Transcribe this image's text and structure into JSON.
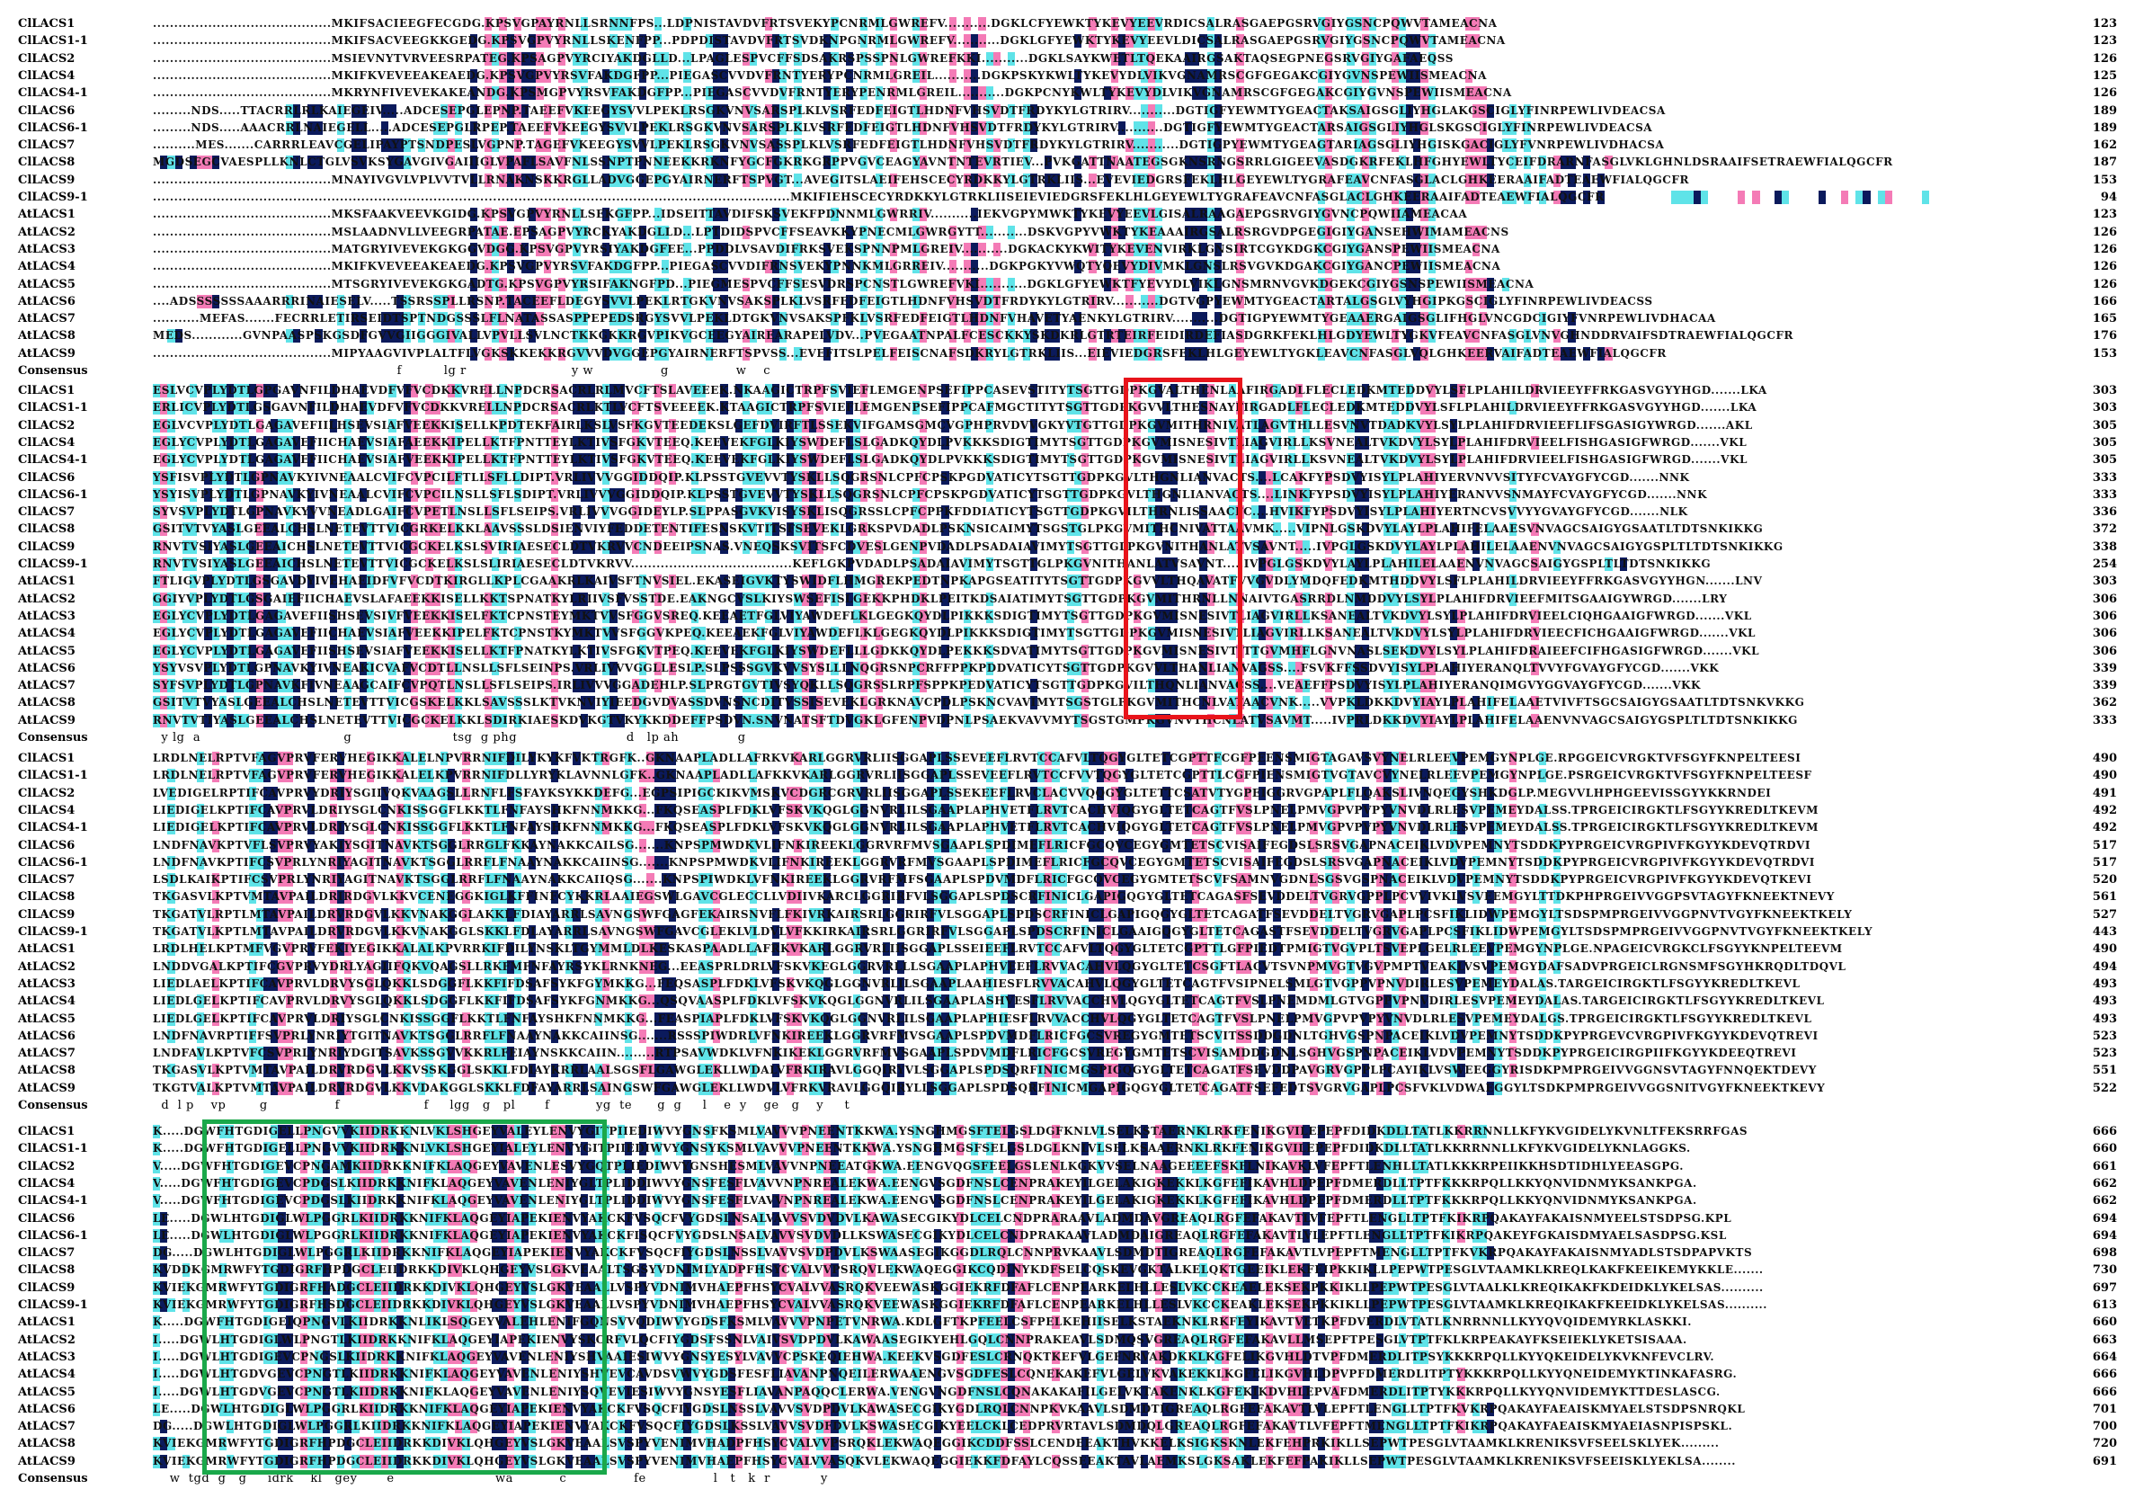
{
  "names": [
    "ClLACS1",
    "ClLACS1-1",
    "ClLACS2",
    "ClLACS4",
    "ClLACS4-1",
    "ClLACS6",
    "ClLACS6-1",
    "ClLACS7",
    "ClLACS8",
    "ClLACS9",
    "ClLACS9-1",
    "AtLACS1",
    "AtLACS2",
    "AtLACS3",
    "AtLACS4",
    "AtLACS5",
    "AtLACS6",
    "AtLACS7",
    "AtLACS8",
    "AtLACS9",
    "Consensus"
  ],
  "blocks": [
    {
      "numbers": [
        "123",
        "123",
        "126",
        "125",
        "126",
        "189",
        "189",
        "162",
        "187",
        "153",
        "94",
        "123",
        "126",
        "126",
        "126",
        "126",
        "166",
        "165",
        "176",
        "153"
      ],
      "consensus": "                                                          f          lg r                         y w                g                w    c"
    },
    {
      "numbers": [
        "303",
        "303",
        "305",
        "305",
        "305",
        "333",
        "333",
        "336",
        "372",
        "338",
        "254",
        "303",
        "306",
        "306",
        "306",
        "306",
        "339",
        "339",
        "362",
        "333"
      ],
      "consensus": "  y lg  a                                  g                        tsg  g phg                          d   lp ah              g"
    },
    {
      "numbers": [
        "490",
        "490",
        "491",
        "492",
        "492",
        "517",
        "517",
        "520",
        "561",
        "527",
        "443",
        "490",
        "494",
        "493",
        "493",
        "493",
        "523",
        "523",
        "551",
        "522"
      ],
      "consensus": "  d  l p    vp        g                f                    f     lgg   g   pl       f           yg  te      g  g     l    e  y    ge   g    y     t"
    },
    {
      "numbers": [
        "666",
        "660",
        "661",
        "662",
        "662",
        "694",
        "694",
        "698",
        "730",
        "697",
        "613",
        "660",
        "663",
        "664",
        "666",
        "666",
        "701",
        "700",
        "720",
        "691"
      ],
      "consensus": "    w  tgd  g   g     idrk    kl   gey       e                        wa           c                fe                l   t   k  r            y"
    }
  ],
  "sequences": [
    [
      "..........................................MKIFSACIEEGFECGDG.KPSVGPAYRNLLSRNNFPS...LDPNISTAVDVFRTSVEKYPCNRMLGWREFV...........DGKLCFYEWKTYKEVYEEVRDICSALRASGAEPGSRVGIYGSNCPQWVTAMEACNA",
      "..........................................MKIFSACVEEGKKGEDG.KPSVGPVYRNLLSKENFPP...PDPDISTAVDVFRTSVDKNPGNRMLGWREFV...........DGKLGFYEWKTYKEVYEEVLDICSALRASGAEPGSRVGIYGSNCPQWVTAMEACNA",
      "..........................................MSIEVNYTVRVEESRPATEG.KPSAGPVYRCIYAKDGLLD...LPAGLESPVCFFSDSAKRSPSSPNLGWREFKKI...........DGKLSAYKWETLTQEKAAIRGSAKTAQSEGPNEGSRVGIYGAFAEQSS",
      "..........................................MKIFKVEVEEAKEAEDG.KPSVGPVYRSVFAKDGFPP...PIEGASCVVDVFRNTYERYPCNRMLGREIL...........DGKPSKYKWLTYKEVYDLVIKVGNAMRSCGFGEGAKCGIYGVNSPEWIISMEACNA",
      "..........................................MKRYNFIVEVEKAKEANDG.KPSMGPVYRSVFAKDGFPP...PIEGASCVVDVFRNTYERYPENRMLGREIL...........DGKPCNYKWLTYKEVYDLVIKVGNAMRSCGFGEGAKCGIYGVNSPEWIISMEACNA",
      ".........NDS.....TTACRRLRLKAIEGEIV.....ADCESEPGLEPNP.TAEEFVKEEGYSVVLPEKLRSGKVNVSARSPLKLVSRFEDFEIGTLHDNFVHSVDTFRDYKYLGTRIRV...........DGTIGFYEWMTYGEACTAKSAIGSGLIYHGLAKGSCIGLYFINRPEWLIVDEACSA",
      ".........NDS.....AAACRRLNAIEGELL.....ADCESEPGLRPEP.TAEEFVKEEGYSVVLPEKLRSGKVNVSARSPLKLVSRFEDFEIGTLHDNFVHSVDTFRDYKYLGTRIRV...........DGTIGFYEWMTYGEACTARSAIGSGLIYHGLSKGSCIGLYFINRPEWLIVDEACSA",
      "..........MES.......CARRRLEAVCGELIPAYPTSNDPESLVGPNP.TAGEFVKEEGYSVVLPEKLRSGKVNVSASSPLKLVSRFEDFEIGTLHDNFVHSVDTFRDYKYLGTRIRV...........DGTIGPYEWMTYGEAGTARIAGSGLIYHGISKGACIGLYFVNRPEWLIVDHACSA",
      "MGDSEGCVAESPLLKNLCTGLVSVKSYGAVGIVGAIIIGLVPAFLSAVFNLSSNPTPNNEEKKRKNFYGCFGKRKGRPPVGVCEAGYAVNTNTEVRTIEV...PVKGATTNAATEGSGKNSRNGSRRLGIGEEVASDGKRFEKLHFGHYEWLTYCEIFDRARNFASGLVKLGHNLDSRAAIFSETRAEWFIALQGCFR",
      "..........................................MNAYIVGVLVPLVVTVLLRNAKNSKKRGLLADVGGEPGYAIRNERFTSPVGT...AVEGITSLAEIFEHSCECYRDKKYLGTRKLIIS...EVEVIEDGRSFEKLHLGEYEWLTYGRAFEAVCNFASGLACLGHKEERAAIFADTEAEWFIALQGCFR",
      "......................................................................................................................................................MKIFIEHSCECYRDKKYLGTRKLIISEIEVIEDGRSFEKLHLGEYEWLTYGRAFEAVCNFASGLACLGHKEERAAIFADTEAEWFIALQGCFR",
      "..........................................MKSFAAKVEEVKGIDG.KPSVGPVYRNLLSEKGFPP...IDSEITTAVDIFSKSVEKFPDNNMLGWRRIV...........IEKVGPYMWKTYKEVYEEVLGISALRAAGAEPGSRVGIYGVNCPQWIIAMEACAA",
      "..........................................MSLAADNVLLVEEGRPATAE.EPSAGPVYRCKYAKDGLLD...LPTDIDSPVCFFSEAVKKYPNECMLGWRGYTT...........DSKVGPYVWKTYKEAAAIRGSALRSRGVDPGEGIGIYGANSEHWIMAMEACNS",
      "..........................................MATGRYIVEVEKGKGGVDGG.KPSVGPVYRSIYAKDGFEE...PPDDLVSAVDIFRKSVEKSPNNPMLGREIV...........DGKACKYKWITYKEVENVIRKLGNSIRTCGYKDGKCGIYGANSPEWIISMEACNA",
      "..........................................MKIFKVEVEEAKEAEDG.KPSVGPVYRSVFAKDGFPP...PIEGASCVVDIFRNSVEKYPNNKMLGRREIV...........DGKPGKYVWQTYQEVYDIVMKLGNSLRSVGVKDGAKCGIYGANCPEWIISMEACNA",
      "..........................................MTSGRYIVEVEKGKGADTG.KPSVGPVYRSIFAKNGFPD...PIEGMESPVCFFSESVDRSPCNSTLGWREFVKI...........DGKLGFYEWKTFYEVYDLVIKLGNSMRNVGVKDGEKCGIYGSNSPEWIISMEACNA",
      "....ADSSSSSSSAAARRRINAIESELV.....TSSRSSPLLRSNP.TACEEFLDEGYSVVLPEKLRTGKVNVSAKSPLKLVSRFEDFEIGTLHDNFVHSVDTFRDYKYLGTRIRV...........DGTVGPYEWMTYGEACTARTALGSGLVYHGIPKGSCIGLYFINRPEWLIVDEACSS",
      "...........MEFAS.......FECRRLETIRSEIDTSPTNDGSSSLFLNATASSASPPEPEDSRGYSVVLPEKLDTGKVNVSAKSPFKLVSRFEDFEIGTLHDNFVHAVETYAENKYLGTRIRV...........DGTIGPYEWMTYGEAAERGAIGSGLIFHGLVNCGDCIGIYFVNRPEWLIVDHACAA",
      "MEDS............GVNPAASPSKGSDFGVVGIIGGGIVALLVPVLLSVLNCTKKGKKRGVPIKVGCEEGYAIREARAPELVDV...PVEGAATNPALFCESCKKYSKDKRLGTRTEIRFEIDIRDEFIASDGRKFEKLHLGDYEWLTYGKVFEAVCNFASGLVNVGHNDDRVAIFSDTRAEWFIALQGCFR",
      "..........................................MIPYAAGVIVPLALTFLVGKSKKEKKRGVVVDVGGEPGYAIRNERFTSPVSS...EVEFITSLPELFEISCNAFSDKRYLGTRKLIIS...EIEVIEDGRSFEKLHLGEYEWLTYGKLEAVCNFASGLVQLGHKEERVAIFADTEAEWFIALQGCFR",
      ""
    ],
    [
      "ESLVCVPLYDTLGPGAVNFILDHAEVDFVFVCDKKVRELLNPDCRSACRLRLMVCFTSLAVEEEK.NKAAGICTRPFSVIEFLEMGENPSEFIPPCASEVSTITYTSGTTGDPKGVALTHENLAAFIRGADLFLECLEDKMTEDDVYLSFLPLAHILDRVIEEYFFRKGASVGYYHGD.......LKA",
      "ERLICVPLYDTLGSGAVNFILDHAEVDFVFVCDKKVRELLNPDCRSACRLKTLVCFTSVEEEEK.KTAAGICTRPFSVIEFLEMGENPSEFIPPCAFMGCTITYTSGTTGDPKGVVLTHESNAYFIRGADLFLECLEDKMTEDDVYLSFLPLAHILDRVIEEYFFRKGASVGYYHGD.......LKA",
      "EGLVCVPLYDTLGAGAVEFIILHSEVSIAFVEEKKISELLKPDTEKFAIRLKSLVSFKGVTEEDEKSLGEFDVIRFTLSSEKVIFGAMSGMCVGPHPRVDVVGKYVTGTTGDPKGVMITHRNIVATLAGVTHLLESVNVTDADKVYLSYLPLAHIFDRVIEEFLIFSGASIGYWRGD.......AKL",
      "EGLYCVPLYDTLGAGAVEFIICHAEVSIAFAEEKKIPELLKTFPNTTEYLKTIVSFGKVTEEQ.KEEVEKFGLKIYSWDEFLSLGADKQYDLPVKKKSDIGTIMYTSGTTGDPKGVMISNESIVTLIAGVIRLLKSVNEALTVKDVYLSYLPLAHIFDRVIEELFISHGASIGFWRGD.......VKL",
      "EGLYCVPLYDTLGAGAVEFIICHAEVSIAFVEEKKIPELLKTFPNTTEYLKTIVSFGKVTEEQ.KEEVEKFGLKIYSWDEFLSLGADKQYDLPVKKKSDIGTIMYTSGTTGDPKGVMISNESIVTLIAGVIRLLKSVNEALTVKDVYLSYLPLAHIFDRVIEELFISHGASIGFWRGD.......VKL",
      "YSFISVPLYDTLGPNAVKYIVNEAALCVIFCVPCILFTLLSFLLDIPT.VRLIVVVGGIDDQIP.KLPSSTGVEVVTYSKLLSQGRSNLCPFCPSKPGDVATICYTSGTTGDPKGVLTHGNLIANVACTS....LCAKFYPSDVYISYLPLAHIYERVNVVSITYFCVAYGFYCGD.......NNK",
      "YSYISVPLYDTLGPNAVKYIVNEAALCVIFCVPCILNSLLSFLSDIPT.VRLIVVVGGIDDQIP.KLPSSTGVEVVTYSKLLSQGRSNLCPFCPSKPGDVATICYTSGTTGDPKGVLTHGNLIANVACTS....LINKFYPSDVYISYLPLAHIYERANVVSNMAYFCVAYGFYCGD.......NNK",
      "SYVSVPLYDTLGPNAVKYVVNEADLGAIFCVPETLNSLLSFLSEIPS.VRLIVVVGGIDEYLP.SLPPASGVKVISYSKLISQGRSSLCPFCPPKFDDIATICYTSGTTGDPKGVILTHRNLISSAACFC....HVIKFYPSDVYISYLPLAHIYERTNCVSVVYYGVAYGFYCGD.......NLK",
      "GSITVTVYASLGEEALCHSLNETEVTTVICGRKELKKLAAVSSSLDSIENVIYFEDDETENTIFESNSKVTITSFSEVEKLGRKSPVDADLPSKNSICAIMYTSGSTGLPKGVMITHCNIVATTAAVMK.....VIPNLGSKDVYLAYLPLAHIFELAAESVNVAGCSAIGYGSAATLTDTSNKIKKG",
      "RNVTVSIYASLGEEAICHSLNETEVTTVICGCKELKSLSVIRIAESECLDTVKRVVCNDEEIPSNAS.VNEQSKSVITSFCDVESLGENPVDADLPSADAIAVIMYTSGTTGLPKGVNITHANLATVSAVNT.....IVPGLGSKDVYLAYLPLAHILELAAENVNVAGCSAIGYGSPLTLTDTSNKIKKG",
      "RNVTVSIYASLGEEAICHSLNETEVTTVICGCKELKSLSLIRIAESECLDTVKRVV......................................KEFLGKPVDADLPSADAIAVIMYTSGTTGLPKGVNITHANLATVSAVNT.....IVPGLGSKDVYLAYLPLAHILELAAENVNVAGCSAIGYGSPLTLTDTSNKIKKG",
      "FTLIGVPLYDTLGSGAVDYIVEHAEIDFVFVCDTKIRGLLKPLCGAAKRLKAIVSFTNVSIEL.EKASEIGVKTYSWIDFLHMGREKPEDTNPKAPGSEATITYTSGTTGDPKGVVLTHQAVATFVVGVDLYMDQFEDKMTHDDVYLSFLPLAHILDRVIEEYFFRKGASVGYYHGN.......LNV",
      "GGIYVPLYDTLGSGAIEFIICHAEVSLAFAEEKKISELLKKTSPNATKYLRIIVSFVSSTDE.EAKNGCVSLKIYSWSEFISLGEKKPHDKLPEITKDSAIATIMYTSGTTGDPKGVMITHRNLLNNAIVTGASRRDLNMDDVYLSYLPLAHIFDRVIEEFMITSGAAIGYWRGD.......LRY",
      "EGLYCVPLYDTLGAGAVEFIISHSEVSIVFVEEKKISELFKTCPNSTEYMKTVVSFGGVSREQ.KEEAETFGLVIYAWDEFLKLGEGKQYDLPIKKKSDIGTIMYTSGTTGDPKGVMISNESIVTLIAGVIRLLKSANEALTVKDVYLSYLPLAHIFDRVIEELCIQHGAAIGFWRGD.......VKL",
      "EGLYCVPLYDTLGAGAVEFIICHAEVSIAFVEEKKIPELFKTCPNSTKYMKTVVSFGGVKPEQ.KEEAEKFGLVIYAWDEFLKLGEGKQYDLPIKKKSDIGTIMYTSGTTGDPKGVMISNESIVTLIAGVIRLLKSANEALTVKDVYLSYLPLAHIFDRVIEECFICHGAAIGFWRGD.......VKL",
      "EGLYCVPLYDTLGAGAVEFIISHSEVSIAFVEEKKISELLKTFPNATKYLKTIVSFGKVTPEQ.KEEVEKFGLKIYSWDEFLLLGDKKQYDLPEKKKSDVATIMYTSGTTGDPKGVMISNESIVTITTGVMHFLGNVNASLSEKDVYLSYLPLAHIFDRAIEEFCIFHGASIGFWRGD.......VKL",
      "YSYVSVPLYDTLGPNAVKYIVNEAKICVAFVCDTLLNSLLSFLSEINPS.VRLIVVVGGLLESLP.SLPSSSGVKVVSYSLLLNQGRSNPCRFFPPKPDDVATICYTSGTTGDPKGVVLTHANLIANVAGSS....FSVKFFSSDVYISYLPLAHIYERANQLTVVYFGVAYGFYCGD.......VKK",
      "SYFSVPLYDTLGPNAVKFIVNEAAGCAIFCVPQTLNSLLSFLSEIPS.IRLIVVVGGADEHLP.SLPRGTGVTIVSYQKLLSQGRSSLRPFSPPKPEDVATICYTSGTTGDPKGVILTHQNLIANVACSS....VEAEFFPSDVYISYLPLAHIYERANQIMGVYGGVAYGFYCGD.......VKK",
      "GSITVTVYASLGEEALCHSLNETEVTTVICGSKELKKLSAVSSSLKTVKNVIYIEEDGVDVASSDVNSNCDITVSSISEVEKLGRKNAVCPDLPSKNCVAVIMYTSGSTGLPKGVMITHCNLVATAACVNK.....VVPKLDKKDVYIAYLPLAHIFELAAETVIVFTSGCSAIGYGSAATLTDTSNKVKKG",
      "RNVTVTIYASLGEEALCHSLNETEVTTVICGCKELKKLSDIRKIAESKDVKGTVKYKKDDEFFPSDVN.SNVNATSFTDVGKLGFENPVDPNLPSAEKVAVVMYTSGSTGMPKGVNVTHCNLATVSAVMT.....IVPRLDKKDVYIAYLPLAHIFELAAENVNVAGCSAIGYGSPLTLTDTSNKIKKG",
      ""
    ],
    [
      "LRDLNELRPTVFAGVPRVFERVHEGIKKALELNPVRRNIFDILYKYKFVKTRGFK..GKNAAPLADLLAFRKVKARLGGRVRLIISGGAPLSSEVEEFLRVTCCAFVLTQGYGLTETCGPTTFCGFPEENSMIGTAGAVSVYNELRLEEVPEMGYNPLGE.RPGGEICVRGKTVFSGYFKNPELTEESI",
      "LRDLNELRPTVFAGVPRVFERVHEGIKKALELKPVRRNIFDLLYRYKLAVNNLGFK..GKNAAPLADLLAFKKVKARLGGRVRLIISGGAPLSSEVEEFLRVTCCFVVTQGYGLTETCGPTTLCGFPIENSMIGTVGTAVCVYNELRLEEVPEMGYNPLGE.PSRGEICVRGKTVFSGYFKNPELTEESF",
      "LVEDIGELRPTIFCAVPRVYDRIYSGIIVQKVAAGSLLRNFLFSFAYKSYKKDEFG...EGPSIPIGCKIKVMSKVCDGRCGRVRLIISGGAPLSSEKEEFLRVCLACVVQQGYGLTETTCSATVTYGPEIGGRVGPAPLFLQAKSLIVNQEGYSHKDGLP.MEGVVLHPHGEEVISSGYYKKRNDEI",
      "LIEDIGELKPTIFCAVPRVLDRIYSGLCNKISSGGFLKKTLFNFAYSHKFNNMKKG...FKQSEASPLFDKLVFSKVKQGLGGNVRLILSGAAPLAPHVETFLRVTCACHVIQGYGLTETCAGTFVSLPNELPMVGPVPVPYVNVDLRLESVPEMEYDALSS.TPRGEICIRGKTLFSGYYKREDLTKEVM",
      "LIEDIGELKPTIFCAVPRVLDRIYSGLCNKISSGGFLKKTLFNFAYSHKFNNMKKG...FKQSEASPLFDKLVFSKVKQGLGGNVRLILSGAAPLAPHVETFLRVTCACHVIQGYGLTETCAGTFVSLPNELPMVGPVPVPYVNVDLRLESVPEMEYDALSS.TPRGEICIRGKTLFSGYYKREDLTKEVM",
      "LNDFNAVKPTVFLSVPRVYAKIYSGITNAVKTSGGLRRGLFKKAYNAKKCAILSG.......KNPSPMWDKVLIFNKIREEKLGGRVRFMVSGAAPLSPDIMEFLRICFGCQVCEGYGMTETSCVISAIFEGDSLSRSVGAPNACEIKLVDVPEMNYTSDDKPYPRGEICVRGPIVFKGYYKDEVQTRDVI",
      "LNDFNAVKPTIFCSVPRLYNRIYAGITNAVKTSGGLRRFLFNAAYNAKKCAIINSG.......KNPSPMWDKVLIFNKIREEKLGGRVRFMVSGAAPLSPDIMEFLRICFGCQVCEGYGMTETSCVISAIFEGDSLSRSVGAPNACEIKLVDVPEMNYTSDDKPYPRGEICVRGPIVFKGYYKDEVQTRDVI",
      "LSDLKAIKPTIFCSVPRLYNRIYAGITNAVKTSGGLRRFLFNAAYNAKKCAIIQSG.......KNPSPIWDKLVFNKIREEKLGGRVRFMFSGAAPLSPDVMDFLRICFGCQVCEGYGMTETSCVFSAMNVGDNLSGSVGSPNACEIKLVDVPEMNYTSDDKPYPRGEICVRGPIVFKGYYKDEVQTKEVI",
      "TKGASVLKPTVMTAVPAILDRIRDGVLKKVCENEGGKIGLKFFINFCYKKRLAAIEGSWLGAVCGLECCLLVDIIVKARCLGGRIRFVLSGGAPLSPDSCRFINICLGAPIGQGYGLTETCAGASFSEVDDELTVGRVGPPLPCVVIVKLVSVEEMGYLTTDKPHPRGEIVVGGPSVTAGYFKNEEKTNEVY",
      "TKGATVLRPTLMTAVPAILDRVRDGVLKKVNAKGGLAKKLFDIAYARRLSAVNGSWFGAGFEKAIRSNVFLFKIVRKAIRSRLGGRIRFVLSGGAPLSPDSCRFINICLGAPIGQGYGLTETCAGATFSEVDDELTVGRVGAPLPCSFIKLIDWPEMGYLTSDSPMPRGEIVVGGPNVTVGYFKNEEKTKELY",
      "TKGATVLKPTLMTAVPAILDRVRDGVLKKVNAKGGLSKKLFDLAYARRLSAVNGSWFGAVCGLEKLVLDVLVFKKIRKAIRSRLGGRIRFVLSGGAPLSPDSCRFINICLGAAIGQGYGLTETCAGASTFSEVDDELTVGRVGAPLPCSFIKLIDWPEMGYLTSDSPMPRGEIVVGGPNVTVGYFKNEEKTKELY",
      "LRDLHELKPTMFVGVPRVFEKIYEGIKKALALKPVRRKIFDILYNSKLTGYMMLDLKESKASPAADLLAFRKVKARLGGRVRLIISGGAPLSSEIEEFLRVTCCAFVLTQGYGLTETCGPTTLGFPIEDTPMIGTVGVPLTSVEPLGELRLEEVPEMGYNPLGE.NPAGEICVRGKCLFSGYYKNPELTEEVM",
      "LNDDVGALKPTIFCGVPRVYDRLYAGIIFQKVQAGSLLRKFMFNFAYRSYKLRNKNEG...EEASPRLDRLVFSKVKEGLGGRVRLLLSGAAPLAPHVEEFLRVVACAHVLQGYGLTETCSGFTLACVTSVNPMVGTVGVPMPTVEAKLVSVPEMGYDAFSADVPRGEICLRGNSMFSGYHKRQDLTDQVL",
      "LIEDLAELKPTIFCAVPRVLDRVYSGLQKKLSDGGFLKKFIFDSAFSYKFGYMKKG...FEQSASPLFDKLVFSKVKQGLGGNVRLILSGAAPLAAHIESFLRVVACAHVLQGYGLTETCAGTFVSIPNELSMLGTVGPPVPNVDIRLESVPEMEYDALAS.TARGEICIRGKTLFSGYYKREDLTKEVL",
      "LIEDLGELKPTIFCAVPRVLDRVYSGLQKKLSDGGFLKKFIFDSAFSYKFGNMKKG...QSQVAASPLFDKLVFSKVKQGLGGNVRLILSGAAPLASHVESFLRVVACCHVLQGYGLTETCAGTFVSLPNEMDMLGTVGPPVPNVDIRLESVPEMEYDALAS.TARGEICIRGKTLFSGYYKREDLTKEVL",
      "LIEDLGELKPTIFCAVPRVLDRIYSGLCNKISSGGFLKKTLFNFAYSHKFNNMKKG...FEASPIAPLFDKLVFSKVKQGLGGNVRLILSGAAPLAPHIESFLRVVACCHVLQGYGLTETCAGTFVSLPNELPMVGPVPVPYVNVDLRLESVPEMEYDALGS.TPRGEICIRGKTLFSGYYKREDLTKEVL",
      "LNDFNAVRPTIFFSVPRLYNRIYTGITNAVKTSGGLRRFLFNAAYNAKKCAIINSG.......RSSSPIWDRLVFNKIREEKLGGRVRFMVSGAAPLSPDVMDFLRICFGCSVREGYGMTETSCVITSSDDGDNLTGHVGSPNPACEIKLVDVPEMNYTSDDKPYPRGEVCVRGPIVFKGYYKDEVQTREVI",
      "LNDFAVLKPTVFCSVPRLYNRIYDGITSAVKSSGVVKKRLFEIAYNSKKCAIIN.........RTPSAVWDKLVFNKIKEKLGGRVRFMVSGAAPLSPDVMDFLRICFGCSVREGYGMTETSCVISAMDDGDNLSGHVGSPNPACEIKLVDVPEMNYTSDDKPYPRGEICIRGPIIFKGYYKDEEQTREVI",
      "TKGASVLKPTVMTAVPAILDRVRDGVLKKVSSKGGLSKKLFDIAYKRRLAALSGSFLGAWGLEKLLWDALVFRKIRAVLGGQIRYVLSGGAPLSPDSQRFINICMGSPIGQGYGLTETCAGATFSEVDDPAVGRVGPPLPCAYIKLVSWEEGGYRISDKPMPRGEIVVGGNSVTAGYFNNQEKTDEVY",
      "TKGTVALKPTVMTAVPAILDRVRDGVLKKVDAKGGLSKKLFDFAYARRLSAINGSWFGAWGLEKLLWDVLVFRKVRAVLGGQIRYLLSGGAPLSPDSQRFINICMGAPIGQGYGLTETCAGATFSEFEDTSVGRVGAPLPCSFVKLVDWAEGGYLTSDKPMPRGEIVVGGSNITVGYFKNEEKTKEVY",
      ""
    ],
    [
      "K.....DGWFHTGDIGELLPNGVVKIIDRKKNLVKLSHGEYVALEYLENVYGITPIIEDIWVYGNSFKSMLVAVVVPNEENTKKWA.YSNGHMGSFTELGSLDGFKNLVLSELKSTAERNKLRKFENIKGVILEPEPFDIDKDLLTATLKKRRNNLLKFYKVGIDELYKVNLTFEKSRRFGAS",
      "K.....DGWFHTGDIGELLPNGVVKIIDRKKNLVKLSHGEYIALEYLENVYGITPIIEDIWVYGNSYKSMLVAVVVPNEENTKKWA.YSNGHMGSFSELGSLDGLKNLVLSELKSAAERNKLRKFENIKGVILEPEPFDIDKDLLTATLKKRRNNLLKFYKVGIDELYKNLAGGKS.",
      "V.....DGWFHTGDIGEVCPNGAMKIIDRKKNIFKLAQGEYVAVENLESVYGQTPLIEDIWVYGNSHESMLVAVVNPNEEATGKWA.EENGVQGSFEELGSLENLKGKVVSELNAAGEEEEFSKFLNIKAVKLVFEPFTLENHLLTATLKKKRPEIIKKHSDTIDHLYEEASGPG.",
      "V.....DGWFHTGDIGEVCPDGSLKIIDRKKNIFKLAQGEYVAVENLENIYGLTPLIDDIWVYGNSFESFLVAVVNPNREALEKWA.EENGVSGDFNSLCENPRAKEYILGELAKIGKEKKLKGFEFIKAVHLDPEPFDMERDLLTPTFKKKRPQLLKKYQNVIDNMYKSANKPGA.",
      "V.....DGWFHTGDIGEVCPDGSLKIIDRKKNIFKLAQGEYVAVENLENIYGLTPLIDDIWVYGNSFESFLVAVVNPNREALEKWA.EENGVSGDFNSLCENPRAKEYILGELAKIGKEKKLKGFEFIKAVHLDPEPFDMERDLLTPTFKKKRPQLLKKYQNVIDNMYKSANKPGA.",
      "LE.....DGWLHTGDIGLWLPGGRLKIIDRKKNIFKLAQGEYIAPEKIENVYAKCKFVSQCFVYGDSLNSALVAVVSVDVDVLKAWASECGIKYDLCELCNDPRARAAVLADMDAVGREAQLRGFEFAKAVTLVFEPFTLENGLLTPTFKIKRPQAKAYFAKAISNMYEELSTSDPSG.KPL",
      "LE.....DGWLHTGDIGLWLPGGRLKIIDRKKNIFKLAQGEYIAPEKIENVYAKCKFISQCFVYGDSLNSALVAVVSVDVDLLKSWASECGIKYDLCELCNDPRAKAAVLADMDAIGREAQLRGFEFAKAVTLVLEPFTLENGLLTPTFKIKRPQAKEYFGKAISDMYAELSASDPSG.KSL",
      "DG.....DGWLHTGDIGLWLPGGRLKIIDRKKNIFKLAQGEYIAPEKIENVYAKCKFVSQCFIYGDSLNSSLVAVVSVDPDVLKSWAASEGIKGGDLRQLCNNPRVKAAVLSDMDTIGREAQLRGFEFAKAVTLVPEPFTMENGLLTPTFKVKRPQAKAYFAKAISNMYADLSTSDPAPVKTS",
      "KVDDKGMRWFYTGDIGRFHPDGCLEIIDRKKDIVKLQHGEYVSLGKVEAALTSGSYVDNIMLYADPFHSYCVALVVPSRQVLEKWAQEGGIKCQDINYKDFSELCQSKEVGKTALKELQKTGEEIKLEKFEIPKKIKLLPEPWTPESGLVTAAMKLKREQLKAKFKEEIKEMYKKLE.......",
      "KVIEKGMRWFYTGDIGRFHADGCLEIIDRKKDIVKLQHGEYVSLGKVEAALLVSPYVDNIMVHAEPFHSYCVALVVASRQKVEEWASKGGIEKRFDFAFLCENPEARKELHLLESLVKCCKEAELEKSEKPKKIKLLPEPWTPESGLVTAALKLKREQIKAKFKDEIDKLYKELSAS..........",
      "KVIEKGMRWFYTGDIGRFHSDGCLEIIDRKKDIVKLQHGEYVSLGKVEAALLVSPYVDNIMVHAEPFHSYCVALVVASRQKVEEWASKGGIEKRFDFAFLCENPEARKELHLLESLVKCCKEAKLEKSEKPKKIKLLPEPWTPESGLVTAAMKLKREQIKAKFKEEIDKLYKELSAS..........",
      "K.....DGWFHTGDIGEIQPNGVLKIIDRKKNLIKLSQGEYVALEHLENIFGQNSVVQDIWVYGDSFKSMLVAVVVPNPETVNRWA.KDLGFTKPFEELCSFPELKEHIISELKSTAEKNKLRKFEYIKAVTVETKPFDVERDLVTATLKNRRNNLLKYYQVQIDEMYRKLASKKI.",
      "I.....DGWLHTGDIGLWLPNGTLKIIDRKKNIFKLAQGEYIAPEKIENVYSKCRFVLQCFIYGDSFSSNLVAIVSVDPDVLKAWAASEGIKYEHLGQLCNNPRAKEAVLSDMQSVGREAQLRGFEFAKAVLLMSEPFTPESGLVTPTFKLKRPEAKAYFKSEIEKLYKETSISAAA.",
      "I.....DGWLHTGDIGEVCPNGSLKIIDRKKNIFKLAQGEYVAVENLENIYSHVAAIESIWVYGNSYESYLVAVVCPSKEQIEHWA.KEEKVSGDFESLCRNQKTKEFVLGEFNRVAKDKKLKGFELIKGVHLDTVPFDMERDLITPSYKKKRPQLLKYYQKEIDELYKVKNFEVCLRV.",
      "I.....DGWLHTGDVGEVCPNGTLKIIDRKKNIFKLAQGEYVAVENLENIYSHVEVCAVDSVWVYGDSFESFLIAVANPNQEILERWAAENGVSGDFESLCQNEKAKEFVLGELVKVAKEKKLKGFELIKGVHLDPVPFDMERDLITPTYKKKRPQLLKYYQNEIDEMYKTINKAFASRG.",
      "I.....DGWLHTGDVGEVCPNGTLKIIDRKKNIFKLAQGEYVAVENLENIYSQVEVIESIWVYGNSYESFLIAVANPAQQCLERWA.VENGVNGDFNSLCQNAKAKAFILGELVKTAKENKLKGFEKIKDVHLEPVAFDMERDLITPTYKKKRPQLLKYYQNVIDEMYKTTDESLASCG.",
      "LE.....DGWLHTGDIGLWLPGGRLKIIDRKKNIFKLAQGEYIAPEKIENVYAKCKFVSQCFIYGDSLNSSLVAVVSVDPDVLKAWASECGIKYGDLRQLCNNPKVKAAVLSDMDTIGREAQLRGFEFAKAVTLVLEPFTLENGLLTPTFKVKRPQAKAYFAEAISKMYAELSTSDPSNRQKL",
      "DG.....DGWLHTGDIGLWLPGGRLKIIDRKKNIFKLAQGEYIAPEKIENVYAKCKFVSQCFIYGDSLKSSLVAVVSVDFDVLKSWASECGIKYEELCKLCEDPRVRTAVLSDMDQLGREAQLRGFEFAKAVTLVFEPFTMENGLLTPTFKIKRPQAKAYFAEAISKMYAEIASNPISPSKL.",
      "KVIEKGMRWFYTGDIGRFHPDGCLEIIDRKKDIVKLQHGEYVSLGKVEAALSVSPYVENIMVHADPFHSYCVALVVPSRQKLEKWAQEGGIKCDDFSSLCENDEEAKTHVKKELKSIGKSKNLEKFEHPRKIKLLSEPWTPESGLVTAAMKLKRENIKSVFSEELSKLYEK.........",
      "KVIEKGMRWFYTGDIGRFHPDGCLEIIDRKKDIVKLQHGEYVSLGKVEAALSVSPYVENIMVHAEPFHSYCVALVVASQKVLEKWAQEGGIEKKFDFAYLCQSSEEAKTAVLAEMKSLGKSAKLEKFEFPAKIKLLSEPWTPESGLVTAAMKLKRENIKSVFSEEISKLYEKLSA........",
      ""
    ]
  ]
}
